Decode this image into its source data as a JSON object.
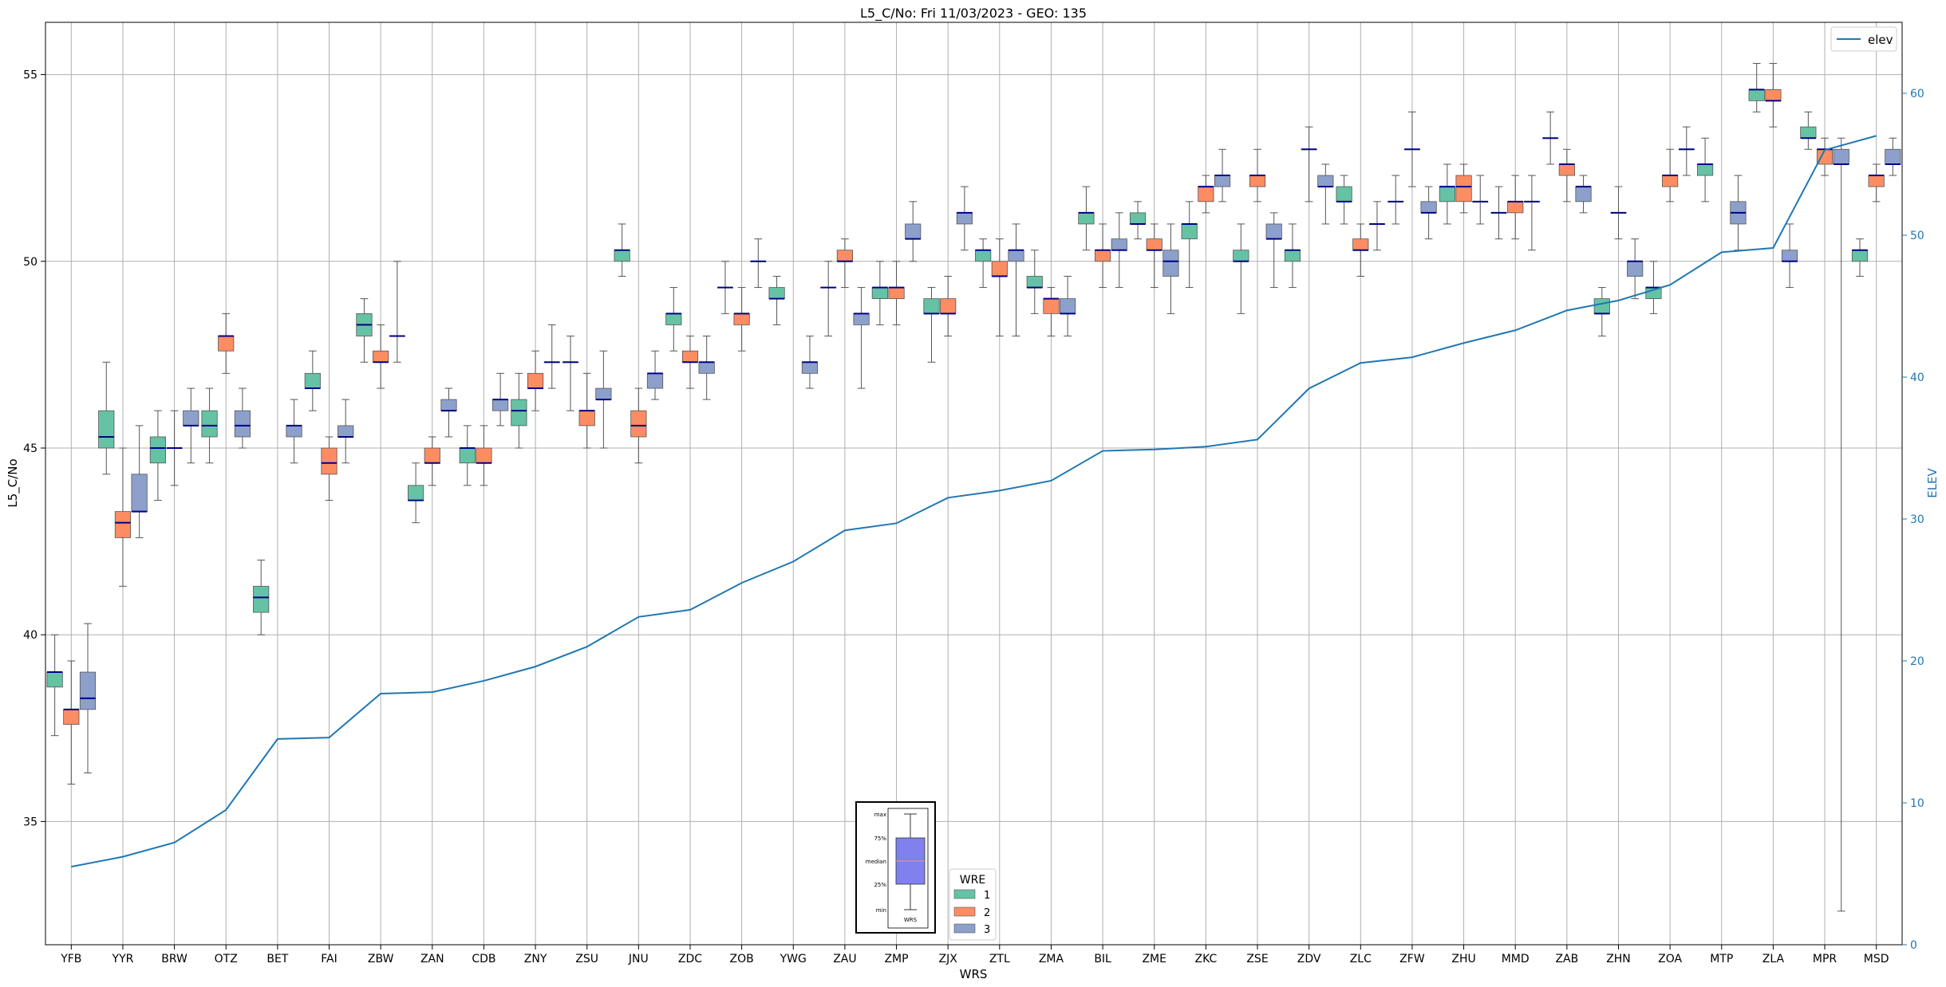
{
  "chart_data": {
    "type": "box",
    "title": "L5_C/No: Fri 11/03/2023 - GEO: 135",
    "xlabel": "WRS",
    "ylabel": "L5_C/No",
    "y2label": "ELEV",
    "ylim": [
      31.7,
      56.4
    ],
    "y2lim": [
      0,
      65
    ],
    "yticks": [
      35,
      40,
      45,
      50,
      55
    ],
    "y2ticks": [
      0,
      10,
      20,
      30,
      40,
      50,
      60
    ],
    "grid": true,
    "colors": {
      "1": "#66c2a5",
      "2": "#fc8d62",
      "3": "#8da0cb",
      "median": "#00008b",
      "elev": "#1f77b4"
    },
    "legend_wre": {
      "title": "WRE",
      "labels": [
        "1",
        "2",
        "3"
      ],
      "placement": "bottom-center"
    },
    "legend_elev": {
      "label": "elev",
      "placement": "top-right"
    },
    "key_box": {
      "labels": [
        "max",
        "75%",
        "median",
        "25%",
        "min"
      ],
      "caption": "WRS"
    },
    "categories": [
      "YFB",
      "YYR",
      "BRW",
      "OTZ",
      "BET",
      "FAI",
      "ZBW",
      "ZAN",
      "CDB",
      "ZNY",
      "ZSU",
      "JNU",
      "ZDC",
      "ZOB",
      "YWG",
      "ZAU",
      "ZMP",
      "ZJX",
      "ZTL",
      "ZMA",
      "BIL",
      "ZME",
      "ZKC",
      "ZSE",
      "ZDV",
      "ZLC",
      "ZFW",
      "ZHU",
      "MMD",
      "ZAB",
      "ZHN",
      "ZOA",
      "MTP",
      "ZLA",
      "MPR",
      "MSD"
    ],
    "elev": [
      5.5,
      6.2,
      7.2,
      9.5,
      14.5,
      14.6,
      17.7,
      17.8,
      18.6,
      19.6,
      21.0,
      23.1,
      23.6,
      25.5,
      27.0,
      29.2,
      29.7,
      31.5,
      32.0,
      32.7,
      34.8,
      34.9,
      35.1,
      35.6,
      39.2,
      41.0,
      41.4,
      42.4,
      43.3,
      44.7,
      45.4,
      46.5,
      48.8,
      49.1,
      56.0,
      57.0
    ],
    "boxes": [
      {
        "site": "YFB",
        "wre": 1,
        "min": 37.3,
        "q1": 38.6,
        "med": 39.0,
        "q3": 39.0,
        "max": 40.0
      },
      {
        "site": "YFB",
        "wre": 2,
        "min": 36.0,
        "q1": 37.6,
        "med": 38.0,
        "q3": 38.0,
        "max": 39.3
      },
      {
        "site": "YFB",
        "wre": 3,
        "min": 36.3,
        "q1": 38.0,
        "med": 38.3,
        "q3": 39.0,
        "max": 40.3
      },
      {
        "site": "YYR",
        "wre": 1,
        "min": 44.3,
        "q1": 45.0,
        "med": 45.3,
        "q3": 46.0,
        "max": 47.3
      },
      {
        "site": "YYR",
        "wre": 2,
        "min": 41.3,
        "q1": 42.6,
        "med": 43.0,
        "q3": 43.3,
        "max": 45.0
      },
      {
        "site": "YYR",
        "wre": 3,
        "min": 42.6,
        "q1": 43.3,
        "med": 43.3,
        "q3": 44.3,
        "max": 45.6
      },
      {
        "site": "BRW",
        "wre": 1,
        "min": 43.6,
        "q1": 44.6,
        "med": 45.0,
        "q3": 45.3,
        "max": 46.0
      },
      {
        "site": "BRW",
        "wre": 2,
        "min": 44.0,
        "q1": 45.0,
        "med": 45.0,
        "q3": 45.0,
        "max": 46.0
      },
      {
        "site": "BRW",
        "wre": 3,
        "min": 44.6,
        "q1": 45.6,
        "med": 45.6,
        "q3": 46.0,
        "max": 46.6
      },
      {
        "site": "OTZ",
        "wre": 1,
        "min": 44.6,
        "q1": 45.3,
        "med": 45.6,
        "q3": 46.0,
        "max": 46.6
      },
      {
        "site": "OTZ",
        "wre": 2,
        "min": 47.0,
        "q1": 47.6,
        "med": 48.0,
        "q3": 48.0,
        "max": 48.6
      },
      {
        "site": "OTZ",
        "wre": 3,
        "min": 45.0,
        "q1": 45.3,
        "med": 45.6,
        "q3": 46.0,
        "max": 46.6
      },
      {
        "site": "BET",
        "wre": 1,
        "min": 40.0,
        "q1": 40.6,
        "med": 41.0,
        "q3": 41.3,
        "max": 42.0
      },
      {
        "site": "BET",
        "wre": 3,
        "min": 44.6,
        "q1": 45.3,
        "med": 45.6,
        "q3": 45.6,
        "max": 46.3
      },
      {
        "site": "FAI",
        "wre": 1,
        "min": 46.0,
        "q1": 46.6,
        "med": 46.6,
        "q3": 47.0,
        "max": 47.6
      },
      {
        "site": "FAI",
        "wre": 2,
        "min": 43.6,
        "q1": 44.3,
        "med": 44.6,
        "q3": 45.0,
        "max": 45.3
      },
      {
        "site": "FAI",
        "wre": 3,
        "min": 44.6,
        "q1": 45.3,
        "med": 45.3,
        "q3": 45.6,
        "max": 46.3
      },
      {
        "site": "ZBW",
        "wre": 1,
        "min": 47.3,
        "q1": 48.0,
        "med": 48.3,
        "q3": 48.6,
        "max": 49.0
      },
      {
        "site": "ZBW",
        "wre": 2,
        "min": 46.6,
        "q1": 47.3,
        "med": 47.3,
        "q3": 47.6,
        "max": 48.3
      },
      {
        "site": "ZBW",
        "wre": 3,
        "min": 47.3,
        "q1": 48.0,
        "med": 48.0,
        "q3": 48.0,
        "max": 50.0
      },
      {
        "site": "ZAN",
        "wre": 1,
        "min": 43.0,
        "q1": 43.6,
        "med": 43.6,
        "q3": 44.0,
        "max": 44.6
      },
      {
        "site": "ZAN",
        "wre": 2,
        "min": 44.0,
        "q1": 44.6,
        "med": 44.6,
        "q3": 45.0,
        "max": 45.3
      },
      {
        "site": "ZAN",
        "wre": 3,
        "min": 45.3,
        "q1": 46.0,
        "med": 46.0,
        "q3": 46.3,
        "max": 46.6
      },
      {
        "site": "CDB",
        "wre": 1,
        "min": 44.0,
        "q1": 44.6,
        "med": 45.0,
        "q3": 45.0,
        "max": 45.6
      },
      {
        "site": "CDB",
        "wre": 2,
        "min": 44.0,
        "q1": 44.6,
        "med": 44.6,
        "q3": 45.0,
        "max": 45.6
      },
      {
        "site": "CDB",
        "wre": 3,
        "min": 45.6,
        "q1": 46.0,
        "med": 46.3,
        "q3": 46.3,
        "max": 47.0
      },
      {
        "site": "ZNY",
        "wre": 1,
        "min": 45.0,
        "q1": 45.6,
        "med": 46.0,
        "q3": 46.3,
        "max": 47.0
      },
      {
        "site": "ZNY",
        "wre": 2,
        "min": 46.0,
        "q1": 46.6,
        "med": 46.6,
        "q3": 47.0,
        "max": 47.6
      },
      {
        "site": "ZNY",
        "wre": 3,
        "min": 46.6,
        "q1": 47.3,
        "med": 47.3,
        "q3": 47.3,
        "max": 48.3
      },
      {
        "site": "ZSU",
        "wre": 1,
        "min": 46.0,
        "q1": 47.3,
        "med": 47.3,
        "q3": 47.3,
        "max": 48.0
      },
      {
        "site": "ZSU",
        "wre": 2,
        "min": 45.0,
        "q1": 45.6,
        "med": 46.0,
        "q3": 46.0,
        "max": 47.0
      },
      {
        "site": "ZSU",
        "wre": 3,
        "min": 45.0,
        "q1": 46.3,
        "med": 46.3,
        "q3": 46.6,
        "max": 47.6
      },
      {
        "site": "JNU",
        "wre": 1,
        "min": 49.6,
        "q1": 50.0,
        "med": 50.3,
        "q3": 50.3,
        "max": 51.0
      },
      {
        "site": "JNU",
        "wre": 2,
        "min": 44.6,
        "q1": 45.3,
        "med": 45.6,
        "q3": 46.0,
        "max": 46.6
      },
      {
        "site": "JNU",
        "wre": 3,
        "min": 46.3,
        "q1": 46.6,
        "med": 47.0,
        "q3": 47.0,
        "max": 47.6
      },
      {
        "site": "ZDC",
        "wre": 1,
        "min": 47.6,
        "q1": 48.3,
        "med": 48.6,
        "q3": 48.6,
        "max": 49.3
      },
      {
        "site": "ZDC",
        "wre": 2,
        "min": 46.6,
        "q1": 47.3,
        "med": 47.3,
        "q3": 47.6,
        "max": 48.0
      },
      {
        "site": "ZDC",
        "wre": 3,
        "min": 46.3,
        "q1": 47.0,
        "med": 47.3,
        "q3": 47.3,
        "max": 48.0
      },
      {
        "site": "ZOB",
        "wre": 1,
        "min": 48.6,
        "q1": 49.3,
        "med": 49.3,
        "q3": 49.3,
        "max": 50.0
      },
      {
        "site": "ZOB",
        "wre": 2,
        "min": 47.6,
        "q1": 48.3,
        "med": 48.6,
        "q3": 48.6,
        "max": 49.3
      },
      {
        "site": "ZOB",
        "wre": 3,
        "min": 49.3,
        "q1": 50.0,
        "med": 50.0,
        "q3": 50.0,
        "max": 50.6
      },
      {
        "site": "YWG",
        "wre": 1,
        "min": 48.3,
        "q1": 49.0,
        "med": 49.0,
        "q3": 49.3,
        "max": 49.6
      },
      {
        "site": "YWG",
        "wre": 3,
        "min": 46.6,
        "q1": 47.0,
        "med": 47.3,
        "q3": 47.3,
        "max": 48.0
      },
      {
        "site": "ZAU",
        "wre": 1,
        "min": 48.0,
        "q1": 49.3,
        "med": 49.3,
        "q3": 49.3,
        "max": 50.0
      },
      {
        "site": "ZAU",
        "wre": 2,
        "min": 49.3,
        "q1": 50.0,
        "med": 50.0,
        "q3": 50.3,
        "max": 50.6
      },
      {
        "site": "ZAU",
        "wre": 3,
        "min": 46.6,
        "q1": 48.3,
        "med": 48.6,
        "q3": 48.6,
        "max": 49.3
      },
      {
        "site": "ZMP",
        "wre": 1,
        "min": 48.3,
        "q1": 49.0,
        "med": 49.3,
        "q3": 49.3,
        "max": 50.0
      },
      {
        "site": "ZMP",
        "wre": 2,
        "min": 48.3,
        "q1": 49.0,
        "med": 49.3,
        "q3": 49.3,
        "max": 50.0
      },
      {
        "site": "ZMP",
        "wre": 3,
        "min": 50.0,
        "q1": 50.6,
        "med": 50.6,
        "q3": 51.0,
        "max": 51.6
      },
      {
        "site": "ZJX",
        "wre": 1,
        "min": 47.3,
        "q1": 48.6,
        "med": 48.6,
        "q3": 49.0,
        "max": 49.3
      },
      {
        "site": "ZJX",
        "wre": 2,
        "min": 48.0,
        "q1": 48.6,
        "med": 48.6,
        "q3": 49.0,
        "max": 49.6
      },
      {
        "site": "ZJX",
        "wre": 3,
        "min": 50.3,
        "q1": 51.0,
        "med": 51.3,
        "q3": 51.3,
        "max": 52.0
      },
      {
        "site": "ZTL",
        "wre": 1,
        "min": 49.3,
        "q1": 50.0,
        "med": 50.3,
        "q3": 50.3,
        "max": 50.6
      },
      {
        "site": "ZTL",
        "wre": 2,
        "min": 48.0,
        "q1": 49.6,
        "med": 49.6,
        "q3": 50.0,
        "max": 50.6
      },
      {
        "site": "ZTL",
        "wre": 3,
        "min": 48.0,
        "q1": 50.0,
        "med": 50.3,
        "q3": 50.3,
        "max": 51.0
      },
      {
        "site": "ZMA",
        "wre": 1,
        "min": 48.6,
        "q1": 49.3,
        "med": 49.3,
        "q3": 49.6,
        "max": 50.3
      },
      {
        "site": "ZMA",
        "wre": 2,
        "min": 48.0,
        "q1": 48.6,
        "med": 49.0,
        "q3": 49.0,
        "max": 49.3
      },
      {
        "site": "ZMA",
        "wre": 3,
        "min": 48.0,
        "q1": 48.6,
        "med": 48.6,
        "q3": 49.0,
        "max": 49.6
      },
      {
        "site": "BIL",
        "wre": 1,
        "min": 50.3,
        "q1": 51.0,
        "med": 51.3,
        "q3": 51.3,
        "max": 52.0
      },
      {
        "site": "BIL",
        "wre": 2,
        "min": 49.3,
        "q1": 50.0,
        "med": 50.3,
        "q3": 50.3,
        "max": 51.0
      },
      {
        "site": "BIL",
        "wre": 3,
        "min": 49.3,
        "q1": 50.3,
        "med": 50.3,
        "q3": 50.6,
        "max": 51.3
      },
      {
        "site": "ZME",
        "wre": 1,
        "min": 50.6,
        "q1": 51.0,
        "med": 51.0,
        "q3": 51.3,
        "max": 51.6
      },
      {
        "site": "ZME",
        "wre": 2,
        "min": 49.3,
        "q1": 50.3,
        "med": 50.3,
        "q3": 50.6,
        "max": 51.0
      },
      {
        "site": "ZME",
        "wre": 3,
        "min": 48.6,
        "q1": 49.6,
        "med": 50.0,
        "q3": 50.3,
        "max": 51.0
      },
      {
        "site": "ZKC",
        "wre": 1,
        "min": 49.3,
        "q1": 50.6,
        "med": 51.0,
        "q3": 51.0,
        "max": 51.6
      },
      {
        "site": "ZKC",
        "wre": 2,
        "min": 51.3,
        "q1": 51.6,
        "med": 52.0,
        "q3": 52.0,
        "max": 52.3
      },
      {
        "site": "ZKC",
        "wre": 3,
        "min": 51.6,
        "q1": 52.0,
        "med": 52.3,
        "q3": 52.3,
        "max": 53.0
      },
      {
        "site": "ZSE",
        "wre": 1,
        "min": 48.6,
        "q1": 50.0,
        "med": 50.0,
        "q3": 50.3,
        "max": 51.0
      },
      {
        "site": "ZSE",
        "wre": 2,
        "min": 51.6,
        "q1": 52.0,
        "med": 52.3,
        "q3": 52.3,
        "max": 53.0
      },
      {
        "site": "ZSE",
        "wre": 3,
        "min": 49.3,
        "q1": 50.6,
        "med": 50.6,
        "q3": 51.0,
        "max": 51.3
      },
      {
        "site": "ZDV",
        "wre": 1,
        "min": 49.3,
        "q1": 50.0,
        "med": 50.3,
        "q3": 50.3,
        "max": 51.0
      },
      {
        "site": "ZDV",
        "wre": 2,
        "min": 51.6,
        "q1": 53.0,
        "med": 53.0,
        "q3": 53.0,
        "max": 53.6
      },
      {
        "site": "ZDV",
        "wre": 3,
        "min": 51.0,
        "q1": 52.0,
        "med": 52.0,
        "q3": 52.3,
        "max": 52.6
      },
      {
        "site": "ZLC",
        "wre": 1,
        "min": 51.0,
        "q1": 51.6,
        "med": 51.6,
        "q3": 52.0,
        "max": 52.3
      },
      {
        "site": "ZLC",
        "wre": 2,
        "min": 49.6,
        "q1": 50.3,
        "med": 50.3,
        "q3": 50.6,
        "max": 51.0
      },
      {
        "site": "ZLC",
        "wre": 3,
        "min": 50.3,
        "q1": 51.0,
        "med": 51.0,
        "q3": 51.0,
        "max": 51.6
      },
      {
        "site": "ZFW",
        "wre": 1,
        "min": 51.0,
        "q1": 51.6,
        "med": 51.6,
        "q3": 51.6,
        "max": 52.3
      },
      {
        "site": "ZFW",
        "wre": 2,
        "min": 52.0,
        "q1": 53.0,
        "med": 53.0,
        "q3": 53.0,
        "max": 54.0
      },
      {
        "site": "ZFW",
        "wre": 3,
        "min": 50.6,
        "q1": 51.3,
        "med": 51.3,
        "q3": 51.6,
        "max": 52.0
      },
      {
        "site": "ZHU",
        "wre": 1,
        "min": 51.0,
        "q1": 51.6,
        "med": 52.0,
        "q3": 52.0,
        "max": 52.6
      },
      {
        "site": "ZHU",
        "wre": 2,
        "min": 51.3,
        "q1": 51.6,
        "med": 52.0,
        "q3": 52.3,
        "max": 52.6
      },
      {
        "site": "ZHU",
        "wre": 3,
        "min": 51.0,
        "q1": 51.6,
        "med": 51.6,
        "q3": 51.6,
        "max": 52.3
      },
      {
        "site": "MMD",
        "wre": 1,
        "min": 50.6,
        "q1": 51.3,
        "med": 51.3,
        "q3": 51.3,
        "max": 52.0
      },
      {
        "site": "MMD",
        "wre": 2,
        "min": 50.6,
        "q1": 51.3,
        "med": 51.6,
        "q3": 51.6,
        "max": 52.3
      },
      {
        "site": "MMD",
        "wre": 3,
        "min": 50.3,
        "q1": 51.6,
        "med": 51.6,
        "q3": 51.6,
        "max": 52.3
      },
      {
        "site": "ZAB",
        "wre": 1,
        "min": 52.6,
        "q1": 53.3,
        "med": 53.3,
        "q3": 53.3,
        "max": 54.0
      },
      {
        "site": "ZAB",
        "wre": 2,
        "min": 51.6,
        "q1": 52.3,
        "med": 52.6,
        "q3": 52.6,
        "max": 53.0
      },
      {
        "site": "ZAB",
        "wre": 3,
        "min": 51.3,
        "q1": 51.6,
        "med": 52.0,
        "q3": 52.0,
        "max": 52.3
      },
      {
        "site": "ZHN",
        "wre": 1,
        "min": 48.0,
        "q1": 48.6,
        "med": 48.6,
        "q3": 49.0,
        "max": 49.3
      },
      {
        "site": "ZHN",
        "wre": 2,
        "min": 50.6,
        "q1": 51.3,
        "med": 51.3,
        "q3": 51.3,
        "max": 52.0
      },
      {
        "site": "ZHN",
        "wre": 3,
        "min": 49.0,
        "q1": 49.6,
        "med": 50.0,
        "q3": 50.0,
        "max": 50.6
      },
      {
        "site": "ZOA",
        "wre": 1,
        "min": 48.6,
        "q1": 49.0,
        "med": 49.3,
        "q3": 49.3,
        "max": 50.0
      },
      {
        "site": "ZOA",
        "wre": 2,
        "min": 51.6,
        "q1": 52.0,
        "med": 52.3,
        "q3": 52.3,
        "max": 53.0
      },
      {
        "site": "ZOA",
        "wre": 3,
        "min": 52.3,
        "q1": 53.0,
        "med": 53.0,
        "q3": 53.0,
        "max": 53.6
      },
      {
        "site": "MTP",
        "wre": 1,
        "min": 51.6,
        "q1": 52.3,
        "med": 52.6,
        "q3": 52.6,
        "max": 53.3
      },
      {
        "site": "MTP",
        "wre": 3,
        "min": 50.3,
        "q1": 51.0,
        "med": 51.3,
        "q3": 51.6,
        "max": 52.3
      },
      {
        "site": "ZLA",
        "wre": 1,
        "min": 54.0,
        "q1": 54.3,
        "med": 54.6,
        "q3": 54.6,
        "max": 55.3
      },
      {
        "site": "ZLA",
        "wre": 2,
        "min": 53.6,
        "q1": 54.3,
        "med": 54.3,
        "q3": 54.6,
        "max": 55.3
      },
      {
        "site": "ZLA",
        "wre": 3,
        "min": 49.3,
        "q1": 50.0,
        "med": 50.0,
        "q3": 50.3,
        "max": 51.0
      },
      {
        "site": "MPR",
        "wre": 1,
        "min": 53.0,
        "q1": 53.3,
        "med": 53.3,
        "q3": 53.6,
        "max": 54.0
      },
      {
        "site": "MPR",
        "wre": 2,
        "min": 52.3,
        "q1": 52.6,
        "med": 53.0,
        "q3": 53.0,
        "max": 53.3
      },
      {
        "site": "MPR",
        "wre": 3,
        "min": 32.6,
        "q1": 52.6,
        "med": 52.6,
        "q3": 53.0,
        "max": 53.3
      },
      {
        "site": "MSD",
        "wre": 1,
        "min": 49.6,
        "q1": 50.0,
        "med": 50.3,
        "q3": 50.3,
        "max": 50.6
      },
      {
        "site": "MSD",
        "wre": 2,
        "min": 51.6,
        "q1": 52.0,
        "med": 52.3,
        "q3": 52.3,
        "max": 52.6
      },
      {
        "site": "MSD",
        "wre": 3,
        "min": 52.3,
        "q1": 52.6,
        "med": 52.6,
        "q3": 53.0,
        "max": 53.3
      }
    ]
  }
}
